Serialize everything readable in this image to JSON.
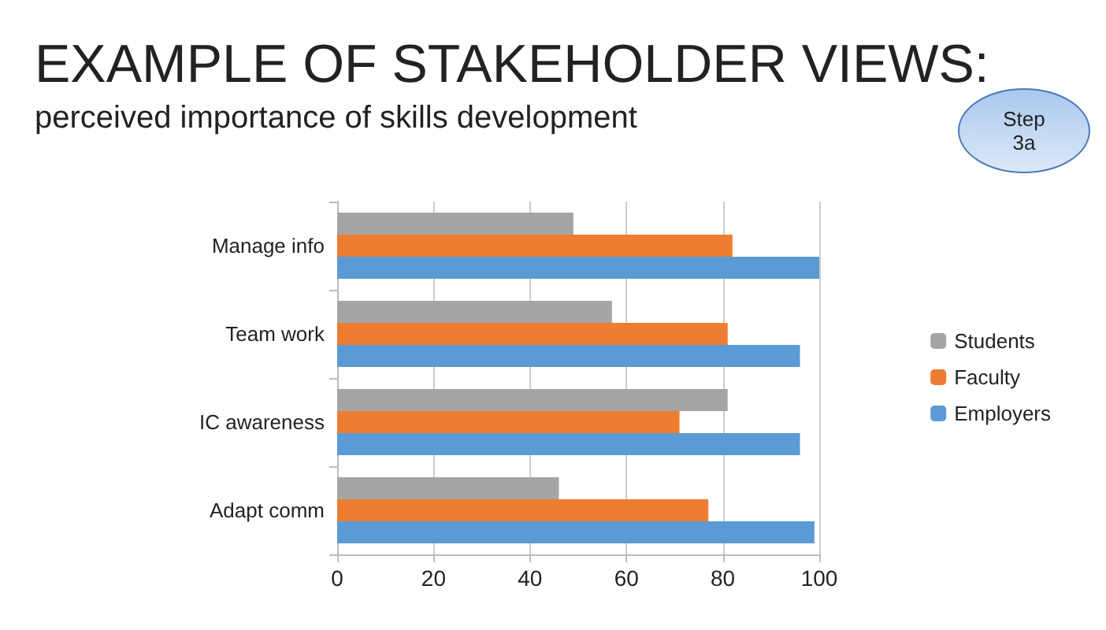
{
  "chart_data": {
    "type": "bar",
    "orientation": "horizontal",
    "title": "EXAMPLE OF STAKEHOLDER VIEWS:",
    "subtitle": "perceived importance of skills development",
    "annotations": [
      "Step 3a"
    ],
    "categories": [
      "Manage info",
      "Team work",
      "IC awareness",
      "Adapt comm"
    ],
    "series": [
      {
        "name": "Students",
        "color": "#a5a5a5",
        "values": [
          49,
          57,
          81,
          46
        ]
      },
      {
        "name": "Faculty",
        "color": "#ed7d31",
        "values": [
          82,
          81,
          71,
          77
        ]
      },
      {
        "name": "Employers",
        "color": "#5b9bd5",
        "values": [
          100,
          96,
          96,
          99
        ]
      }
    ],
    "xlim": [
      0,
      100
    ],
    "xticks": [
      0,
      20,
      40,
      60,
      80,
      100
    ],
    "grid": "x",
    "legend": "right"
  }
}
